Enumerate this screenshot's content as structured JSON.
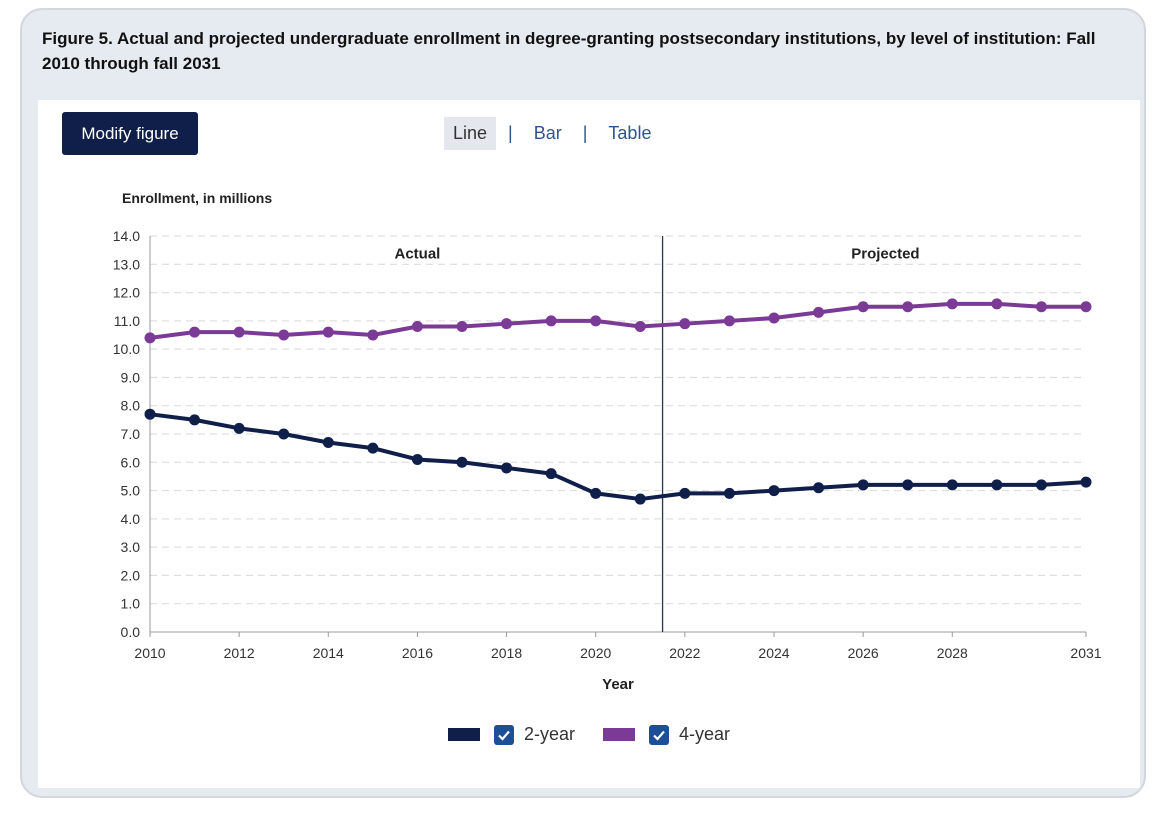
{
  "figure": {
    "title": "Figure 5. Actual and projected undergraduate enrollment in degree-granting postsecondary institutions, by level of institution: Fall 2010 through fall 2031"
  },
  "controls": {
    "modify_label": "Modify figure",
    "tabs": [
      {
        "label": "Line",
        "active": true
      },
      {
        "label": "Bar",
        "active": false
      },
      {
        "label": "Table",
        "active": false
      }
    ],
    "separator": "|"
  },
  "icons": {
    "checkbox": "check-icon"
  },
  "colors": {
    "two_year": "#0f1f4a",
    "four_year": "#7b3a96",
    "button": "#0f1f4a",
    "link": "#2e5590"
  },
  "chart_data": {
    "type": "line",
    "ylabel": "Enrollment, in millions",
    "xlabel": "Year",
    "ylim": [
      0,
      14
    ],
    "yticks": [
      "0.0",
      "1.0",
      "2.0",
      "3.0",
      "4.0",
      "5.0",
      "6.0",
      "7.0",
      "8.0",
      "9.0",
      "10.0",
      "11.0",
      "12.0",
      "13.0",
      "14.0"
    ],
    "xlim": [
      2010,
      2031
    ],
    "xticks": [
      "2010",
      "2012",
      "2014",
      "2016",
      "2018",
      "2020",
      "2022",
      "2024",
      "2026",
      "2028",
      "2031"
    ],
    "grid": true,
    "divider_x": 2021.5,
    "annotations": [
      {
        "text": "Actual",
        "x": 2016
      },
      {
        "text": "Projected",
        "x": 2026.5
      }
    ],
    "legend_position": "bottom",
    "x": [
      2010,
      2011,
      2012,
      2013,
      2014,
      2015,
      2016,
      2017,
      2018,
      2019,
      2020,
      2021,
      2022,
      2023,
      2024,
      2025,
      2026,
      2027,
      2028,
      2029,
      2030,
      2031
    ],
    "series": [
      {
        "name": "2-year",
        "color": "#0f1f4a",
        "values": [
          7.7,
          7.5,
          7.2,
          7.0,
          6.7,
          6.5,
          6.1,
          6.0,
          5.8,
          5.6,
          4.9,
          4.7,
          4.9,
          4.9,
          5.0,
          5.1,
          5.2,
          5.2,
          5.2,
          5.2,
          5.2,
          5.3
        ]
      },
      {
        "name": "4-year",
        "color": "#7b3a96",
        "values": [
          10.4,
          10.6,
          10.6,
          10.5,
          10.6,
          10.5,
          10.8,
          10.8,
          10.9,
          11.0,
          11.0,
          10.8,
          10.9,
          11.0,
          11.1,
          11.3,
          11.5,
          11.5,
          11.6,
          11.6,
          11.5,
          11.5
        ]
      }
    ]
  }
}
